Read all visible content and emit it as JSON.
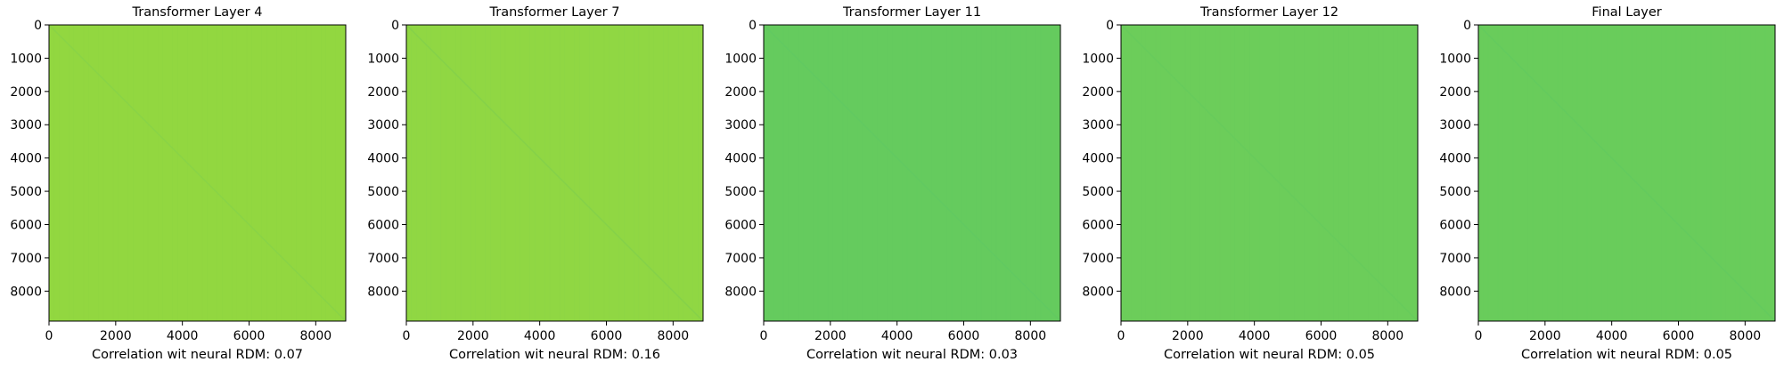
{
  "chart_data": [
    {
      "type": "heatmap",
      "title": "Transformer Layer 4",
      "xlabel": "Correlation wit neural RDM: 0.07",
      "ylabel": "",
      "xticks": [
        0,
        2000,
        4000,
        6000,
        8000
      ],
      "yticks": [
        0,
        1000,
        2000,
        3000,
        4000,
        5000,
        6000,
        7000,
        8000
      ],
      "xlim": [
        0,
        8900
      ],
      "ylim": [
        8900,
        0
      ],
      "fill_color": "#92d740",
      "diag_color": "#86d249",
      "correlation": 0.07
    },
    {
      "type": "heatmap",
      "title": "Transformer Layer 7",
      "xlabel": "Correlation wit neural RDM: 0.16",
      "ylabel": "",
      "xticks": [
        0,
        2000,
        4000,
        6000,
        8000
      ],
      "yticks": [
        0,
        1000,
        2000,
        3000,
        4000,
        5000,
        6000,
        7000,
        8000
      ],
      "xlim": [
        0,
        8900
      ],
      "ylim": [
        8900,
        0
      ],
      "fill_color": "#90d743",
      "diag_color": "#82d04b",
      "correlation": 0.16
    },
    {
      "type": "heatmap",
      "title": "Transformer Layer 11",
      "xlabel": "Correlation wit neural RDM: 0.03",
      "ylabel": "",
      "xticks": [
        0,
        2000,
        4000,
        6000,
        8000
      ],
      "yticks": [
        0,
        1000,
        2000,
        3000,
        4000,
        5000,
        6000,
        7000,
        8000
      ],
      "xlim": [
        0,
        8900
      ],
      "ylim": [
        8900,
        0
      ],
      "fill_color": "#65cb5e",
      "diag_color": "#60c962",
      "correlation": 0.03
    },
    {
      "type": "heatmap",
      "title": "Transformer Layer 12",
      "xlabel": "Correlation wit neural RDM: 0.05",
      "ylabel": "",
      "xticks": [
        0,
        2000,
        4000,
        6000,
        8000
      ],
      "yticks": [
        0,
        1000,
        2000,
        3000,
        4000,
        5000,
        6000,
        7000,
        8000
      ],
      "xlim": [
        0,
        8900
      ],
      "ylim": [
        8900,
        0
      ],
      "fill_color": "#6ccd5a",
      "diag_color": "#66cb5d",
      "correlation": 0.05
    },
    {
      "type": "heatmap",
      "title": "Final Layer",
      "xlabel": "Correlation wit neural RDM: 0.05",
      "ylabel": "",
      "xticks": [
        0,
        2000,
        4000,
        6000,
        8000
      ],
      "yticks": [
        0,
        1000,
        2000,
        3000,
        4000,
        5000,
        6000,
        7000,
        8000
      ],
      "xlim": [
        0,
        8900
      ],
      "ylim": [
        8900,
        0
      ],
      "fill_color": "#69cc5b",
      "diag_color": "#62ca60",
      "correlation": 0.05
    }
  ]
}
